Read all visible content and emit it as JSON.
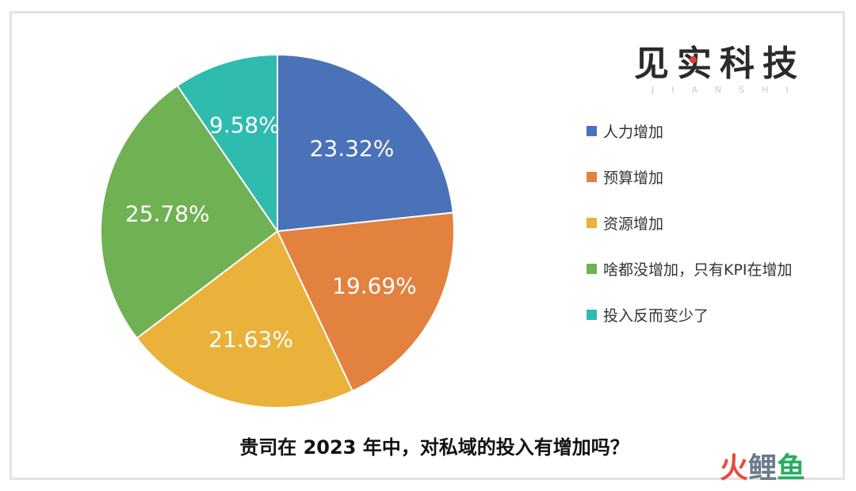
{
  "chart_data": {
    "type": "pie",
    "title": "贵司在 2023 年中，对私域的投入有增加吗？",
    "categories": [
      "人力增加",
      "预算增加",
      "资源增加",
      "啥都没增加，只有KPI在增加",
      "投入反而变少了"
    ],
    "values": [
      23.32,
      19.69,
      21.63,
      25.78,
      9.58
    ],
    "labels": [
      "23.32%",
      "19.69%",
      "21.63%",
      "25.78%",
      "9.58%"
    ],
    "colors": [
      "#4a72b8",
      "#e3813f",
      "#eab23a",
      "#70b153",
      "#2fbbae"
    ],
    "legend_position": "right",
    "start_angle_deg": 0,
    "direction": "clockwise"
  },
  "brand": {
    "name": "见实科技",
    "sub": "JIANSHI",
    "dot_color": "#e23b2f"
  },
  "watermark": {
    "part1": "火",
    "part2": "鲤",
    "part3": "鱼"
  }
}
